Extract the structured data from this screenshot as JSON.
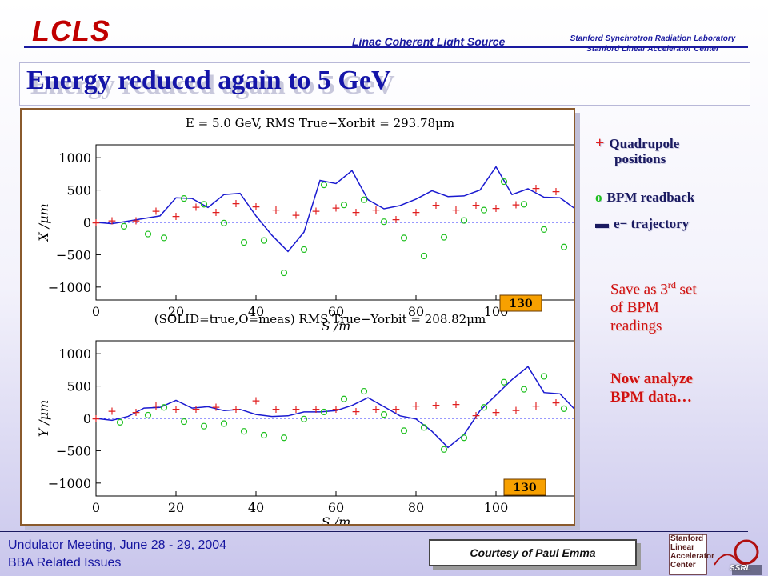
{
  "header": {
    "logo": "LCLS",
    "center": "Linac Coherent Light Source",
    "right_line1": "Stanford Synchrotron Radiation Laboratory",
    "right_line2": "Stanford Linear Accelerator Center"
  },
  "slide_title": "Energy reduced again to 5 GeV",
  "legend": {
    "quad_symbol": "+",
    "quad_label_line1": "Quadrupole",
    "quad_label_line2": "positions",
    "bpm_symbol": "o",
    "bpm_label": "BPM readback",
    "traj_label": "e− trajectory"
  },
  "notes": {
    "save_line1_prefix": "Save as 3",
    "save_line1_sup": "rd",
    "save_line1_suffix": " set",
    "save_line2": "of BPM",
    "save_line3": "readings",
    "analyze_line1": "Now analyze",
    "analyze_line2": "BPM data…"
  },
  "footer": {
    "left_line1": "Undulator Meeting, June 28 - 29, 2004",
    "left_line2": "BBA Related Issues",
    "courtesy": "Courtesy of Paul Emma"
  },
  "colors": {
    "quad": "#e02020",
    "bpm": "#20c020",
    "trajectory": "#1a1ad0",
    "zero_line": "#3030ff"
  },
  "chart_data": [
    {
      "type": "scatter",
      "title": "E = 5.0 GeV, RMS True−Xorbit = 293.78μm",
      "xlabel": "S /m",
      "ylabel": "X /μm",
      "xlim": [
        0,
        120
      ],
      "ylim": [
        -1200,
        1200
      ],
      "xticks": [
        "0",
        "20",
        "40",
        "60",
        "80",
        "100"
      ],
      "yticks": [
        "1000",
        "500",
        "0",
        "−500",
        "−1000"
      ],
      "ytick_values": [
        1000,
        500,
        0,
        -500,
        -1000
      ],
      "xtick_values": [
        0,
        20,
        40,
        60,
        80,
        100
      ],
      "badge": "130",
      "series": [
        {
          "kind": "quad",
          "x": [
            0,
            4,
            10,
            15,
            20,
            25,
            30,
            35,
            40,
            45,
            50,
            55,
            60,
            65,
            70,
            75,
            80,
            85,
            90,
            95,
            100,
            105,
            110,
            115
          ],
          "y": [
            0,
            30,
            30,
            180,
            100,
            240,
            160,
            300,
            250,
            200,
            120,
            180,
            230,
            160,
            200,
            50,
            160,
            270,
            200,
            270,
            220,
            280,
            530,
            480
          ]
        },
        {
          "kind": "bpm",
          "x": [
            7,
            13,
            17,
            22,
            27,
            32,
            37,
            42,
            47,
            52,
            57,
            62,
            67,
            72,
            77,
            82,
            87,
            92,
            97,
            102,
            107,
            112,
            117
          ],
          "y": [
            -60,
            -180,
            -240,
            370,
            280,
            -10,
            -310,
            -280,
            -780,
            -420,
            580,
            270,
            350,
            10,
            -240,
            -520,
            -230,
            30,
            190,
            630,
            280,
            -110,
            -380
          ]
        },
        {
          "kind": "trajectory",
          "x": [
            0,
            4,
            8,
            12,
            16,
            20,
            24,
            28,
            32,
            36,
            40,
            44,
            48,
            52,
            56,
            60,
            64,
            68,
            72,
            76,
            80,
            84,
            88,
            92,
            96,
            100,
            104,
            108,
            112,
            116,
            120
          ],
          "y": [
            0,
            -20,
            20,
            60,
            100,
            380,
            370,
            230,
            430,
            450,
            100,
            -200,
            -450,
            -150,
            650,
            600,
            800,
            350,
            210,
            260,
            360,
            490,
            400,
            410,
            500,
            860,
            430,
            520,
            390,
            380,
            200
          ]
        }
      ]
    },
    {
      "type": "scatter",
      "title": "(SOLID=true,O=meas) RMS True−Yorbit = 208.82μm",
      "xlabel": "S /m",
      "ylabel": "Y /μm",
      "xlim": [
        0,
        120
      ],
      "ylim": [
        -1200,
        1200
      ],
      "xticks": [
        "0",
        "20",
        "40",
        "60",
        "80",
        "100"
      ],
      "yticks": [
        "1000",
        "500",
        "0",
        "−500",
        "−1000"
      ],
      "ytick_values": [
        1000,
        500,
        0,
        -500,
        -1000
      ],
      "xtick_values": [
        0,
        20,
        40,
        60,
        80,
        100
      ],
      "badge": "130",
      "series": [
        {
          "kind": "quad",
          "x": [
            0,
            4,
            10,
            15,
            20,
            25,
            30,
            35,
            40,
            45,
            50,
            55,
            60,
            65,
            70,
            75,
            80,
            85,
            90,
            95,
            100,
            105,
            110,
            115
          ],
          "y": [
            0,
            120,
            100,
            200,
            150,
            150,
            180,
            150,
            280,
            150,
            150,
            150,
            150,
            110,
            150,
            150,
            200,
            210,
            220,
            50,
            100,
            130,
            200,
            250
          ]
        },
        {
          "kind": "bpm",
          "x": [
            6,
            13,
            17,
            22,
            27,
            32,
            37,
            42,
            47,
            52,
            57,
            62,
            67,
            72,
            77,
            82,
            87,
            92,
            97,
            102,
            107,
            112,
            117
          ],
          "y": [
            -60,
            50,
            170,
            -50,
            -120,
            -80,
            -200,
            -260,
            -300,
            -10,
            100,
            300,
            420,
            60,
            -190,
            -140,
            -480,
            -300,
            170,
            560,
            450,
            650,
            150
          ]
        },
        {
          "kind": "trajectory",
          "x": [
            0,
            4,
            8,
            12,
            16,
            20,
            24,
            28,
            32,
            36,
            40,
            44,
            48,
            52,
            56,
            60,
            64,
            68,
            72,
            76,
            80,
            84,
            88,
            92,
            96,
            100,
            104,
            108,
            112,
            116,
            120
          ],
          "y": [
            0,
            -30,
            30,
            160,
            170,
            280,
            160,
            180,
            120,
            140,
            60,
            30,
            40,
            100,
            100,
            120,
            200,
            320,
            180,
            40,
            -10,
            -200,
            -450,
            -250,
            120,
            360,
            600,
            800,
            400,
            380,
            120
          ]
        }
      ]
    }
  ]
}
